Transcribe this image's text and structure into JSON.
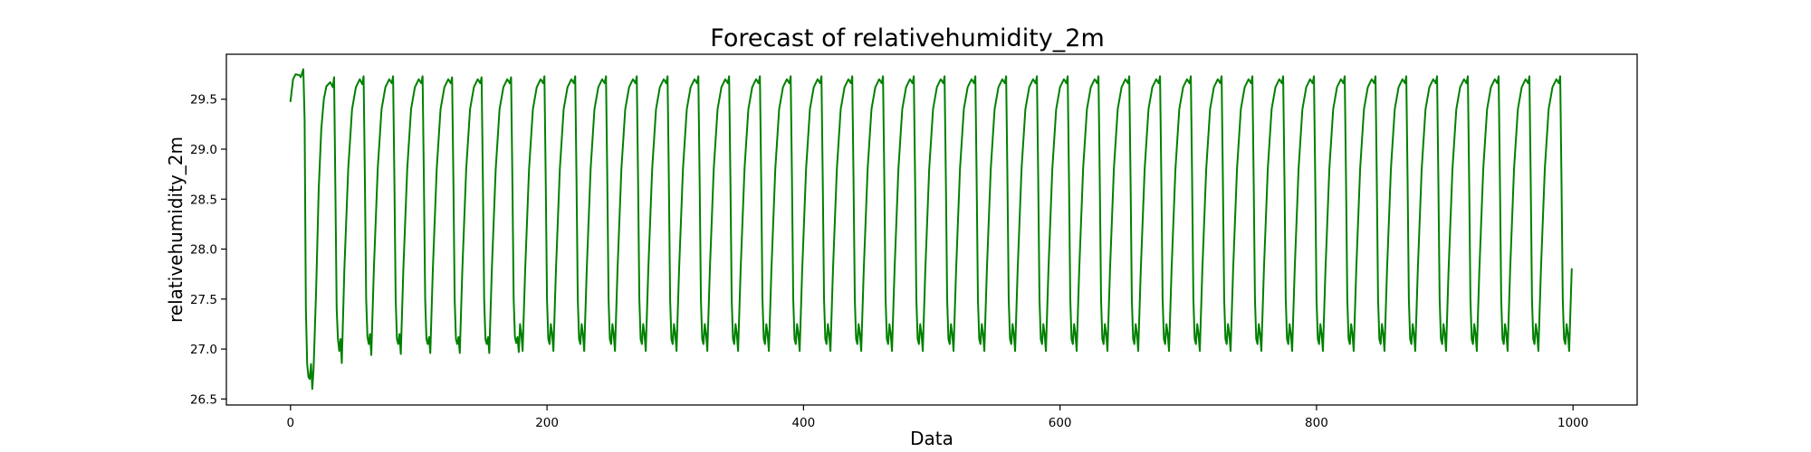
{
  "chart_data": {
    "type": "line",
    "title": "Forecast of relativehumidity_2m",
    "xlabel": "Data",
    "ylabel": "relativehumidity_2m",
    "xlim": [
      -50,
      1050
    ],
    "ylim": [
      26.44,
      29.95
    ],
    "xticks": [
      0,
      200,
      400,
      600,
      800,
      1000
    ],
    "xtick_labels": [
      "0",
      "200",
      "400",
      "600",
      "800",
      "1000"
    ],
    "yticks": [
      26.5,
      27.0,
      27.5,
      28.0,
      28.5,
      29.0,
      29.5
    ],
    "ytick_labels": [
      "26.5",
      "27.0",
      "27.5",
      "28.0",
      "28.5",
      "29.0",
      "29.5"
    ],
    "grid": false,
    "legend": "none",
    "series": [
      {
        "color": "#008000",
        "x_start": 0,
        "x_end": 999,
        "period": 24,
        "cycle_peak_approx": 29.72,
        "cycle_trough_approx": 27.1,
        "points": [
          [
            0,
            29.48
          ],
          [
            2,
            29.7
          ],
          [
            4,
            29.75
          ],
          [
            7,
            29.74
          ],
          [
            8,
            29.72
          ],
          [
            10,
            29.8
          ],
          [
            11,
            29.3
          ],
          [
            12,
            27.4
          ],
          [
            13,
            26.85
          ],
          [
            14,
            26.72
          ],
          [
            15,
            26.7
          ],
          [
            16,
            26.85
          ],
          [
            17,
            26.6
          ],
          [
            18,
            26.8
          ],
          [
            20,
            27.6
          ],
          [
            22,
            28.6
          ],
          [
            24,
            29.2
          ],
          [
            26,
            29.5
          ],
          [
            28,
            29.63
          ],
          [
            31,
            29.67
          ],
          [
            33,
            29.62
          ],
          [
            34,
            29.72
          ],
          [
            35,
            28.6
          ],
          [
            36,
            27.4
          ],
          [
            37,
            27.1
          ],
          [
            38,
            26.98
          ],
          [
            39,
            27.1
          ],
          [
            40,
            26.86
          ],
          [
            42,
            27.8
          ],
          [
            45,
            28.8
          ],
          [
            48,
            29.4
          ],
          [
            51,
            29.62
          ],
          [
            54,
            29.7
          ],
          [
            56,
            29.65
          ],
          [
            57,
            29.73
          ],
          [
            58,
            28.7
          ],
          [
            59,
            27.5
          ],
          [
            60,
            27.12
          ],
          [
            61,
            27.05
          ],
          [
            62,
            27.15
          ],
          [
            63,
            26.94
          ],
          [
            65,
            27.8
          ],
          [
            68,
            28.8
          ],
          [
            71,
            29.4
          ],
          [
            74,
            29.62
          ],
          [
            77,
            29.7
          ],
          [
            79,
            29.66
          ],
          [
            80,
            29.73
          ],
          [
            81,
            28.7
          ],
          [
            82,
            27.5
          ],
          [
            83,
            27.1
          ],
          [
            84,
            27.05
          ],
          [
            85,
            27.15
          ],
          [
            86,
            26.95
          ],
          [
            88,
            27.8
          ],
          [
            91,
            28.8
          ],
          [
            94,
            29.4
          ],
          [
            97,
            29.62
          ],
          [
            100,
            29.7
          ],
          [
            102,
            29.66
          ],
          [
            103,
            29.73
          ],
          [
            104,
            28.7
          ],
          [
            105,
            27.5
          ],
          [
            106,
            27.1
          ],
          [
            107,
            27.05
          ],
          [
            108,
            27.12
          ],
          [
            109,
            26.96
          ],
          [
            111,
            27.8
          ],
          [
            114,
            28.8
          ],
          [
            117,
            29.4
          ],
          [
            120,
            29.62
          ],
          [
            123,
            29.7
          ],
          [
            125,
            29.66
          ],
          [
            126,
            29.72
          ],
          [
            127,
            28.7
          ],
          [
            128,
            27.5
          ],
          [
            129,
            27.1
          ],
          [
            130,
            27.05
          ],
          [
            131,
            27.12
          ],
          [
            132,
            26.96
          ],
          [
            134,
            27.8
          ],
          [
            137,
            28.8
          ],
          [
            140,
            29.4
          ],
          [
            143,
            29.62
          ],
          [
            146,
            29.7
          ],
          [
            148,
            29.66
          ],
          [
            149,
            29.72
          ],
          [
            150,
            28.7
          ],
          [
            151,
            27.5
          ],
          [
            152,
            27.1
          ],
          [
            153,
            27.05
          ],
          [
            154,
            27.12
          ],
          [
            155,
            26.96
          ],
          [
            157,
            27.8
          ],
          [
            160,
            28.8
          ],
          [
            163,
            29.4
          ],
          [
            166,
            29.62
          ],
          [
            169,
            29.7
          ],
          [
            171,
            29.66
          ],
          [
            172,
            29.72
          ],
          [
            173,
            28.7
          ],
          [
            174,
            27.5
          ],
          [
            175,
            27.12
          ],
          [
            176,
            27.06
          ],
          [
            177,
            27.12
          ],
          [
            178,
            26.97
          ]
        ]
      }
    ]
  }
}
